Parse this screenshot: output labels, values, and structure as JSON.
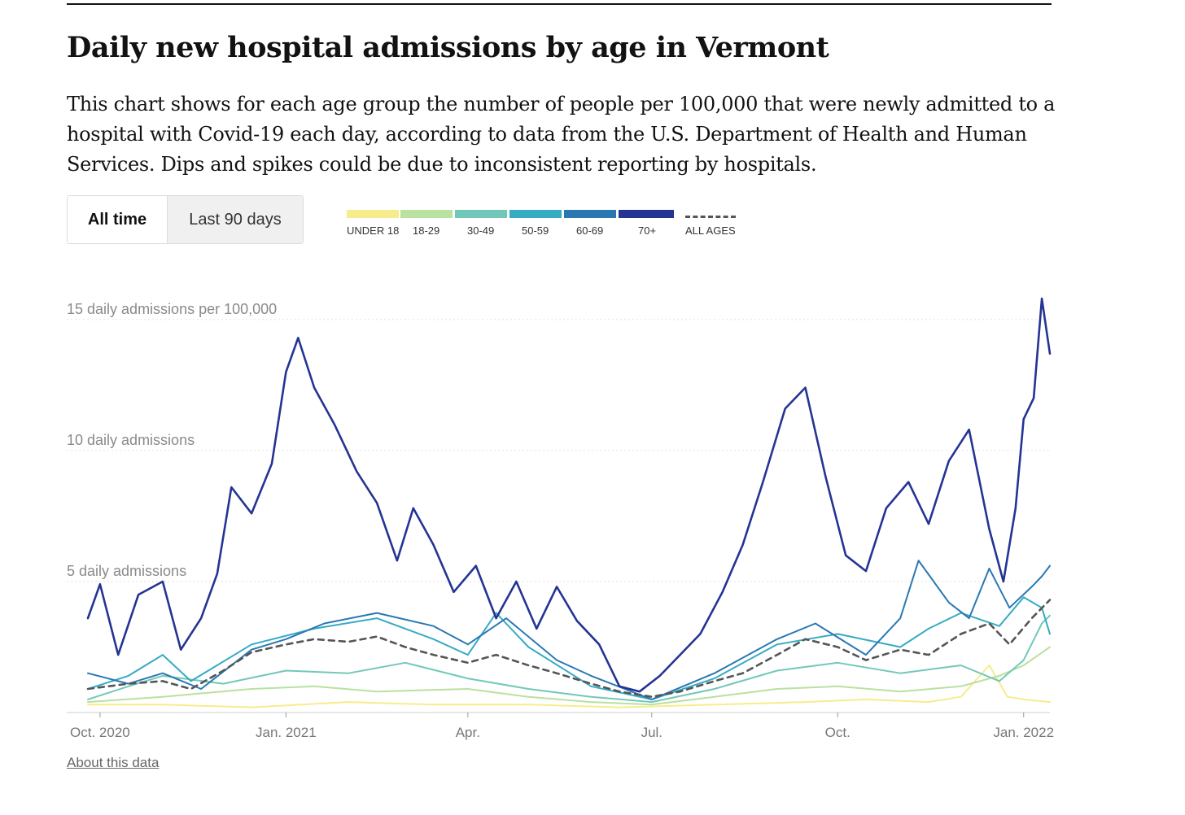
{
  "header": {
    "title": "Daily new hospital admissions by age in Vermont",
    "description": "This chart shows for each age group the number of people per 100,000 that were newly admitted to a hospital with Covid-19 each day, according to data from the U.S. Department of Health and Human Services. Dips and spikes could be due to inconsistent reporting by hospitals."
  },
  "toggle": {
    "all_time_label": "All time",
    "last_90_label": "Last 90 days",
    "selected": "All time"
  },
  "legend": {
    "items": [
      {
        "label": "UNDER 18",
        "color": "#f7ec8c"
      },
      {
        "label": "18-29",
        "color": "#b9e19f"
      },
      {
        "label": "30-49",
        "color": "#72c8b8"
      },
      {
        "label": "50-59",
        "color": "#36abc4"
      },
      {
        "label": "60-69",
        "color": "#2a78b2"
      },
      {
        "label": "70+",
        "color": "#243493"
      }
    ],
    "all_ages": {
      "label": "ALL AGES",
      "color": "#555555"
    }
  },
  "chart_data": {
    "type": "line",
    "title": "Daily new hospital admissions by age in Vermont",
    "ylabel": "daily admissions per 100,000",
    "ylim": [
      0,
      16
    ],
    "y_ticks": [
      {
        "value": 5,
        "label": "5 daily admissions"
      },
      {
        "value": 10,
        "label": "10 daily admissions"
      },
      {
        "value": 15,
        "label": "15 daily admissions per 100,000"
      }
    ],
    "x_ticks": [
      {
        "date": "2020-10-01",
        "label": "Oct. 2020"
      },
      {
        "date": "2021-01-01",
        "label": "Jan. 2021"
      },
      {
        "date": "2021-04-01",
        "label": "Apr."
      },
      {
        "date": "2021-07-01",
        "label": "Jul."
      },
      {
        "date": "2021-10-01",
        "label": "Oct."
      },
      {
        "date": "2022-01-01",
        "label": "Jan. 2022"
      }
    ],
    "x_start": "2020-09-25",
    "x_end": "2022-01-14",
    "series": [
      {
        "name": "UNDER 18",
        "color": "#f7ec8c",
        "dashed": false,
        "width": 2,
        "points": [
          [
            "2020-09-25",
            0.3
          ],
          [
            "2020-11-01",
            0.3
          ],
          [
            "2020-12-15",
            0.2
          ],
          [
            "2021-02-01",
            0.4
          ],
          [
            "2021-03-15",
            0.3
          ],
          [
            "2021-05-01",
            0.3
          ],
          [
            "2021-06-15",
            0.2
          ],
          [
            "2021-08-01",
            0.3
          ],
          [
            "2021-09-15",
            0.4
          ],
          [
            "2021-10-15",
            0.5
          ],
          [
            "2021-11-15",
            0.4
          ],
          [
            "2021-12-01",
            0.6
          ],
          [
            "2021-12-15",
            1.8
          ],
          [
            "2021-12-24",
            0.6
          ],
          [
            "2022-01-01",
            0.5
          ],
          [
            "2022-01-14",
            0.4
          ]
        ]
      },
      {
        "name": "18-29",
        "color": "#b9e19f",
        "dashed": false,
        "width": 2,
        "points": [
          [
            "2020-09-25",
            0.4
          ],
          [
            "2020-11-01",
            0.6
          ],
          [
            "2020-12-15",
            0.9
          ],
          [
            "2021-01-15",
            1.0
          ],
          [
            "2021-02-15",
            0.8
          ],
          [
            "2021-04-01",
            0.9
          ],
          [
            "2021-05-01",
            0.6
          ],
          [
            "2021-06-01",
            0.4
          ],
          [
            "2021-07-01",
            0.3
          ],
          [
            "2021-08-01",
            0.6
          ],
          [
            "2021-09-01",
            0.9
          ],
          [
            "2021-10-01",
            1.0
          ],
          [
            "2021-11-01",
            0.8
          ],
          [
            "2021-12-01",
            1.0
          ],
          [
            "2021-12-20",
            1.4
          ],
          [
            "2022-01-01",
            1.8
          ],
          [
            "2022-01-14",
            2.5
          ]
        ]
      },
      {
        "name": "30-49",
        "color": "#72c8b8",
        "dashed": false,
        "width": 2,
        "points": [
          [
            "2020-09-25",
            0.5
          ],
          [
            "2020-10-15",
            1.0
          ],
          [
            "2020-11-01",
            1.4
          ],
          [
            "2020-12-01",
            1.1
          ],
          [
            "2021-01-01",
            1.6
          ],
          [
            "2021-02-01",
            1.5
          ],
          [
            "2021-03-01",
            1.9
          ],
          [
            "2021-04-01",
            1.3
          ],
          [
            "2021-05-01",
            0.9
          ],
          [
            "2021-06-01",
            0.6
          ],
          [
            "2021-07-01",
            0.4
          ],
          [
            "2021-08-01",
            0.9
          ],
          [
            "2021-09-01",
            1.6
          ],
          [
            "2021-10-01",
            1.9
          ],
          [
            "2021-11-01",
            1.5
          ],
          [
            "2021-12-01",
            1.8
          ],
          [
            "2021-12-20",
            1.2
          ],
          [
            "2022-01-01",
            2.0
          ],
          [
            "2022-01-10",
            3.4
          ],
          [
            "2022-01-14",
            3.7
          ]
        ]
      },
      {
        "name": "50-59",
        "color": "#36abc4",
        "dashed": false,
        "width": 2,
        "points": [
          [
            "2020-09-25",
            0.9
          ],
          [
            "2020-10-15",
            1.4
          ],
          [
            "2020-11-01",
            2.2
          ],
          [
            "2020-11-15",
            1.2
          ],
          [
            "2020-12-15",
            2.6
          ],
          [
            "2021-01-15",
            3.2
          ],
          [
            "2021-02-15",
            3.6
          ],
          [
            "2021-03-15",
            2.8
          ],
          [
            "2021-04-01",
            2.2
          ],
          [
            "2021-04-15",
            3.8
          ],
          [
            "2021-05-01",
            2.5
          ],
          [
            "2021-06-01",
            1.0
          ],
          [
            "2021-07-01",
            0.5
          ],
          [
            "2021-08-01",
            1.3
          ],
          [
            "2021-09-01",
            2.6
          ],
          [
            "2021-10-01",
            3.0
          ],
          [
            "2021-11-01",
            2.5
          ],
          [
            "2021-11-15",
            3.2
          ],
          [
            "2021-12-01",
            3.8
          ],
          [
            "2021-12-20",
            3.3
          ],
          [
            "2022-01-01",
            4.4
          ],
          [
            "2022-01-10",
            4.0
          ],
          [
            "2022-01-14",
            3.0
          ]
        ]
      },
      {
        "name": "60-69",
        "color": "#2a78b2",
        "dashed": false,
        "width": 2,
        "points": [
          [
            "2020-09-25",
            1.5
          ],
          [
            "2020-10-15",
            1.1
          ],
          [
            "2020-11-01",
            1.5
          ],
          [
            "2020-11-20",
            0.9
          ],
          [
            "2020-12-15",
            2.4
          ],
          [
            "2021-01-01",
            2.8
          ],
          [
            "2021-01-20",
            3.4
          ],
          [
            "2021-02-15",
            3.8
          ],
          [
            "2021-03-15",
            3.3
          ],
          [
            "2021-04-01",
            2.6
          ],
          [
            "2021-04-20",
            3.6
          ],
          [
            "2021-05-15",
            2.0
          ],
          [
            "2021-06-01",
            1.4
          ],
          [
            "2021-07-01",
            0.5
          ],
          [
            "2021-08-01",
            1.5
          ],
          [
            "2021-09-01",
            2.8
          ],
          [
            "2021-09-20",
            3.4
          ],
          [
            "2021-10-15",
            2.2
          ],
          [
            "2021-11-01",
            3.6
          ],
          [
            "2021-11-10",
            5.8
          ],
          [
            "2021-11-25",
            4.2
          ],
          [
            "2021-12-05",
            3.6
          ],
          [
            "2021-12-15",
            5.5
          ],
          [
            "2021-12-25",
            4.0
          ],
          [
            "2022-01-05",
            4.8
          ],
          [
            "2022-01-10",
            5.2
          ],
          [
            "2022-01-14",
            5.6
          ]
        ]
      },
      {
        "name": "70+",
        "color": "#243493",
        "dashed": false,
        "width": 2.6,
        "points": [
          [
            "2020-09-25",
            3.6
          ],
          [
            "2020-10-01",
            4.9
          ],
          [
            "2020-10-10",
            2.2
          ],
          [
            "2020-10-20",
            4.5
          ],
          [
            "2020-11-01",
            5.0
          ],
          [
            "2020-11-10",
            2.4
          ],
          [
            "2020-11-20",
            3.6
          ],
          [
            "2020-11-28",
            5.3
          ],
          [
            "2020-12-05",
            8.6
          ],
          [
            "2020-12-15",
            7.6
          ],
          [
            "2020-12-25",
            9.5
          ],
          [
            "2021-01-01",
            13.0
          ],
          [
            "2021-01-07",
            14.3
          ],
          [
            "2021-01-15",
            12.4
          ],
          [
            "2021-01-25",
            11.0
          ],
          [
            "2021-02-05",
            9.2
          ],
          [
            "2021-02-15",
            8.0
          ],
          [
            "2021-02-25",
            5.8
          ],
          [
            "2021-03-05",
            7.8
          ],
          [
            "2021-03-15",
            6.4
          ],
          [
            "2021-03-25",
            4.6
          ],
          [
            "2021-04-05",
            5.6
          ],
          [
            "2021-04-15",
            3.6
          ],
          [
            "2021-04-25",
            5.0
          ],
          [
            "2021-05-05",
            3.2
          ],
          [
            "2021-05-15",
            4.8
          ],
          [
            "2021-05-25",
            3.5
          ],
          [
            "2021-06-05",
            2.6
          ],
          [
            "2021-06-15",
            1.0
          ],
          [
            "2021-06-25",
            0.8
          ],
          [
            "2021-07-05",
            1.4
          ],
          [
            "2021-07-15",
            2.2
          ],
          [
            "2021-07-25",
            3.0
          ],
          [
            "2021-08-05",
            4.6
          ],
          [
            "2021-08-15",
            6.4
          ],
          [
            "2021-08-25",
            8.8
          ],
          [
            "2021-09-05",
            11.6
          ],
          [
            "2021-09-15",
            12.4
          ],
          [
            "2021-09-25",
            9.0
          ],
          [
            "2021-10-05",
            6.0
          ],
          [
            "2021-10-15",
            5.4
          ],
          [
            "2021-10-25",
            7.8
          ],
          [
            "2021-11-05",
            8.8
          ],
          [
            "2021-11-15",
            7.2
          ],
          [
            "2021-11-25",
            9.6
          ],
          [
            "2021-12-05",
            10.8
          ],
          [
            "2021-12-15",
            7.0
          ],
          [
            "2021-12-22",
            5.0
          ],
          [
            "2021-12-28",
            7.8
          ],
          [
            "2022-01-01",
            11.2
          ],
          [
            "2022-01-06",
            12.0
          ],
          [
            "2022-01-10",
            15.8
          ],
          [
            "2022-01-14",
            13.7
          ]
        ]
      },
      {
        "name": "ALL AGES",
        "color": "#555555",
        "dashed": true,
        "width": 2.6,
        "points": [
          [
            "2020-09-25",
            0.9
          ],
          [
            "2020-10-15",
            1.1
          ],
          [
            "2020-11-01",
            1.2
          ],
          [
            "2020-11-15",
            0.9
          ],
          [
            "2020-12-01",
            1.6
          ],
          [
            "2020-12-15",
            2.3
          ],
          [
            "2021-01-01",
            2.6
          ],
          [
            "2021-01-15",
            2.8
          ],
          [
            "2021-02-01",
            2.7
          ],
          [
            "2021-02-15",
            2.9
          ],
          [
            "2021-03-01",
            2.5
          ],
          [
            "2021-03-15",
            2.2
          ],
          [
            "2021-04-01",
            1.9
          ],
          [
            "2021-04-15",
            2.2
          ],
          [
            "2021-05-01",
            1.8
          ],
          [
            "2021-05-15",
            1.5
          ],
          [
            "2021-06-01",
            1.1
          ],
          [
            "2021-06-15",
            0.8
          ],
          [
            "2021-07-01",
            0.6
          ],
          [
            "2021-07-15",
            0.8
          ],
          [
            "2021-08-01",
            1.2
          ],
          [
            "2021-08-15",
            1.5
          ],
          [
            "2021-09-01",
            2.2
          ],
          [
            "2021-09-15",
            2.8
          ],
          [
            "2021-10-01",
            2.5
          ],
          [
            "2021-10-15",
            2.0
          ],
          [
            "2021-11-01",
            2.4
          ],
          [
            "2021-11-15",
            2.2
          ],
          [
            "2021-12-01",
            3.0
          ],
          [
            "2021-12-15",
            3.4
          ],
          [
            "2021-12-25",
            2.6
          ],
          [
            "2022-01-05",
            3.6
          ],
          [
            "2022-01-14",
            4.3
          ]
        ]
      }
    ]
  },
  "footer": {
    "about_link": "About this data"
  }
}
